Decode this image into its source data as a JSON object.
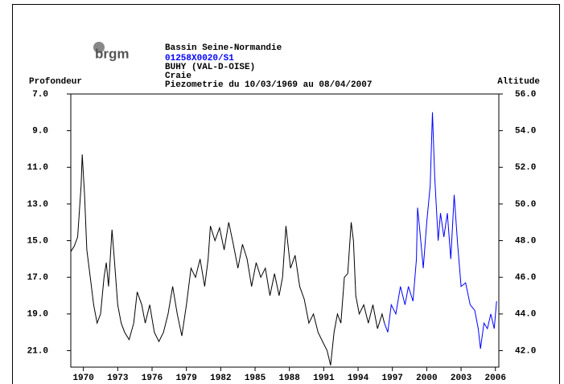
{
  "chart_data": {
    "type": "line",
    "brand": "brgm",
    "title": "Bassin Seine-Normandie",
    "code": "01258X0020/S1",
    "location": "BUHY (VAL-D-OISE)",
    "aquifer": "Craie",
    "subtitle": "Piezometrie du 10/03/1969 au 08/04/2007",
    "y_label": "Profondeur",
    "y2_label": "Altitude",
    "xlim": [
      1968.9,
      2006.3
    ],
    "xticks": [
      1970,
      1973,
      1976,
      1979,
      1982,
      1985,
      1988,
      1991,
      1994,
      1997,
      2000,
      2003,
      2006
    ],
    "ylim": [
      7,
      21.9
    ],
    "y_reversed": true,
    "yticks": [
      {
        "value": 7,
        "label": "7.0"
      },
      {
        "value": 9,
        "label": "9.0"
      },
      {
        "value": 11,
        "label": "11.0"
      },
      {
        "value": 13,
        "label": "13.0"
      },
      {
        "value": 15,
        "label": "15.0"
      },
      {
        "value": 17,
        "label": "17.0"
      },
      {
        "value": 19,
        "label": "19.0"
      },
      {
        "value": 21,
        "label": "21.0"
      }
    ],
    "y2lim": [
      41.1,
      56
    ],
    "y2ticks": [
      {
        "value": 56,
        "label": "56.0"
      },
      {
        "value": 54,
        "label": "54.0"
      },
      {
        "value": 52,
        "label": "52.0"
      },
      {
        "value": 50,
        "label": "50.0"
      },
      {
        "value": 48,
        "label": "48.0"
      },
      {
        "value": 46,
        "label": "46.0"
      },
      {
        "value": 44,
        "label": "44.0"
      },
      {
        "value": 42,
        "label": "42.0"
      }
    ],
    "series": [
      {
        "color": "#000000",
        "x": [
          1968.9,
          1969.2,
          1969.5,
          1969.8,
          1969.9,
          1970.1,
          1970.3,
          1970.6,
          1970.9,
          1971.2,
          1971.5,
          1971.8,
          1972.0,
          1972.2,
          1972.5,
          1972.7,
          1973.0,
          1973.3,
          1973.6,
          1974.0,
          1974.4,
          1974.7,
          1975.1,
          1975.4,
          1975.8,
          1976.2,
          1976.6,
          1977.0,
          1977.4,
          1977.8,
          1978.2,
          1978.6,
          1979.0,
          1979.4,
          1979.8,
          1980.2,
          1980.6,
          1980.9,
          1981.1,
          1981.5,
          1981.9,
          1982.3,
          1982.7,
          1983.1,
          1983.5,
          1983.9,
          1984.3,
          1984.7,
          1985.1,
          1985.5,
          1985.9,
          1986.3,
          1986.7,
          1987.1,
          1987.4,
          1987.7,
          1988.1,
          1988.5,
          1988.9,
          1989.3,
          1989.7,
          1990.1,
          1990.5,
          1990.9,
          1991.3,
          1991.6,
          1991.9,
          1992.2,
          1992.5,
          1992.8,
          1993.1,
          1993.4,
          1993.6,
          1993.8,
          1994.1,
          1994.5,
          1994.9,
          1995.3,
          1995.7,
          1996.1,
          1996.3
        ],
        "values": [
          15.6,
          15.3,
          14.8,
          12.0,
          10.3,
          12.5,
          15.5,
          17.0,
          18.5,
          19.5,
          19.0,
          17.0,
          16.2,
          17.5,
          14.4,
          16.0,
          18.5,
          19.5,
          20.0,
          20.4,
          19.5,
          17.8,
          18.5,
          19.5,
          18.5,
          20.0,
          20.5,
          20.0,
          19.0,
          17.5,
          19.0,
          20.2,
          18.5,
          16.5,
          17.0,
          16.0,
          17.5,
          16.0,
          14.2,
          15.0,
          14.3,
          15.5,
          14.0,
          15.2,
          16.5,
          15.2,
          16.0,
          17.5,
          16.2,
          17.0,
          16.5,
          18.0,
          16.8,
          18.0,
          17.0,
          14.2,
          16.5,
          15.8,
          17.5,
          18.2,
          19.5,
          19.0,
          20.0,
          20.5,
          21.0,
          21.8,
          20.0,
          19.0,
          19.5,
          17.0,
          16.8,
          14.0,
          15.0,
          18.0,
          19.0,
          18.5,
          19.5,
          18.5,
          19.8,
          19.0,
          19.5
        ]
      },
      {
        "color": "#0000ff",
        "x": [
          1996.3,
          1996.6,
          1996.9,
          1997.3,
          1997.7,
          1998.1,
          1998.4,
          1998.8,
          1999.1,
          1999.2,
          1999.4,
          1999.7,
          2000.0,
          2000.3,
          2000.5,
          2000.7,
          2001.0,
          2001.2,
          2001.5,
          2001.8,
          2002.1,
          2002.4,
          2002.7,
          2003.0,
          2003.4,
          2003.8,
          2004.2,
          2004.5,
          2004.7,
          2005.0,
          2005.3,
          2005.6,
          2005.9,
          2006.1
        ],
        "values": [
          19.5,
          20.0,
          18.5,
          19.0,
          17.5,
          18.5,
          17.5,
          18.3,
          16.0,
          13.2,
          14.5,
          16.5,
          14.0,
          12.0,
          8.0,
          11.5,
          15.0,
          13.5,
          14.8,
          13.5,
          16.0,
          12.5,
          15.2,
          17.5,
          17.3,
          18.5,
          18.8,
          19.8,
          20.9,
          19.5,
          19.8,
          19.0,
          19.8,
          18.3
        ]
      }
    ]
  }
}
